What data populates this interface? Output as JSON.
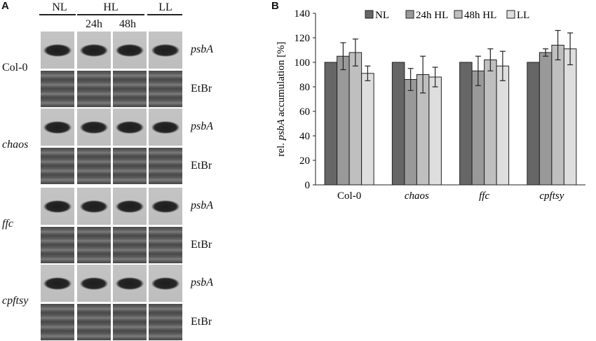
{
  "panels": {
    "a": "A",
    "b": "B"
  },
  "blot": {
    "lane_headers": {
      "nl": "NL",
      "hl": "HL",
      "ll": "LL",
      "hl_24h": "24h",
      "hl_48h": "48h"
    },
    "rows": [
      {
        "genotype": "Col-0",
        "probe": "psbA",
        "stain": "EtBr"
      },
      {
        "genotype": "chaos",
        "probe": "psbA",
        "stain": "EtBr"
      },
      {
        "genotype": "ffc",
        "probe": "psbA",
        "stain": "EtBr"
      },
      {
        "genotype": "cpftsy",
        "probe": "psbA",
        "stain": "EtBr"
      }
    ]
  },
  "chart_data": {
    "type": "bar",
    "ylabel_prefix": "rel. ",
    "ylabel_italic": "psbA",
    "ylabel_suffix": " accumulation [%]",
    "ylim": [
      0,
      140
    ],
    "yticks": [
      0,
      20,
      40,
      60,
      80,
      100,
      120,
      140
    ],
    "categories": [
      "Col-0",
      "chaos",
      "ffc",
      "cpftsy"
    ],
    "italic_categories": [
      "chaos",
      "ffc",
      "cpftsy"
    ],
    "legend_position": "top",
    "series": [
      {
        "name": "NL",
        "color": "#666666",
        "values": [
          100,
          100,
          100,
          100
        ],
        "errors": [
          0,
          0,
          0,
          0
        ]
      },
      {
        "name": "24h HL",
        "color": "#999999",
        "values": [
          105,
          86,
          93,
          108
        ],
        "errors": [
          11,
          9,
          12,
          3
        ]
      },
      {
        "name": "48h HL",
        "color": "#bfbfbf",
        "values": [
          108,
          90,
          102,
          114
        ],
        "errors": [
          11,
          15,
          9,
          12
        ]
      },
      {
        "name": "LL",
        "color": "#dedede",
        "values": [
          91,
          88,
          97,
          111
        ],
        "errors": [
          6,
          8,
          12,
          13
        ]
      }
    ]
  }
}
